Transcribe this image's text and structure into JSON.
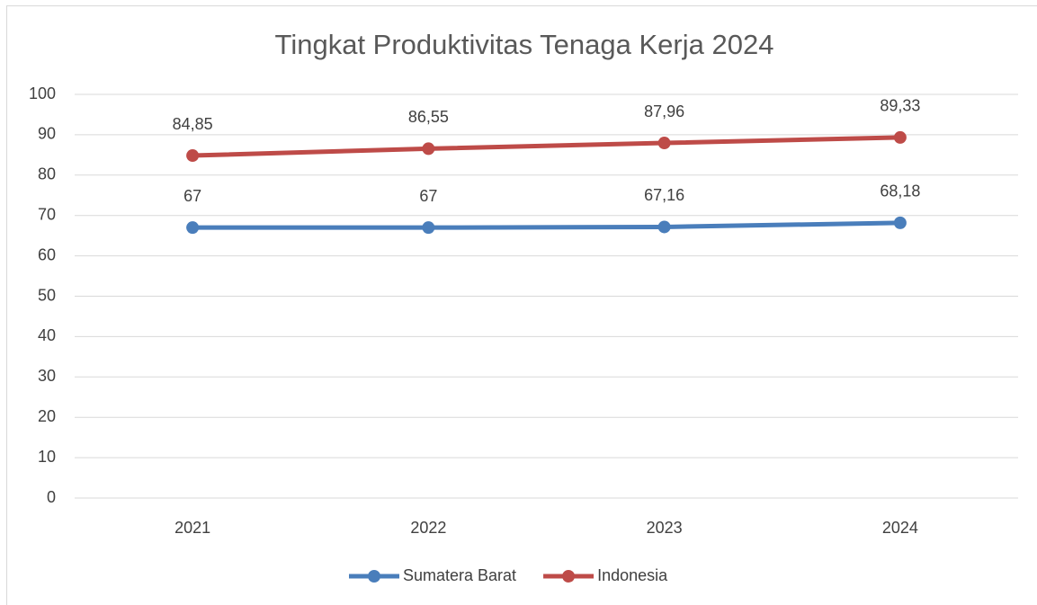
{
  "chart_data": {
    "type": "line",
    "title": "Tingkat Produktivitas Tenaga Kerja 2024",
    "categories": [
      "2021",
      "2022",
      "2023",
      "2024"
    ],
    "series": [
      {
        "name": "Sumatera Barat",
        "color": "#4a7ebb",
        "values": [
          67,
          67,
          67.16,
          68.18
        ],
        "value_labels": [
          "67",
          "67",
          "67,16",
          "68,18"
        ]
      },
      {
        "name": "Indonesia",
        "color": "#be4b48",
        "values": [
          84.85,
          86.55,
          87.96,
          89.33
        ],
        "value_labels": [
          "84,85",
          "86,55",
          "87,96",
          "89,33"
        ]
      }
    ],
    "ylim": [
      0,
      100
    ],
    "yticks": [
      0,
      10,
      20,
      30,
      40,
      50,
      60,
      70,
      80,
      90,
      100
    ],
    "grid": true,
    "legend": "bottom"
  }
}
